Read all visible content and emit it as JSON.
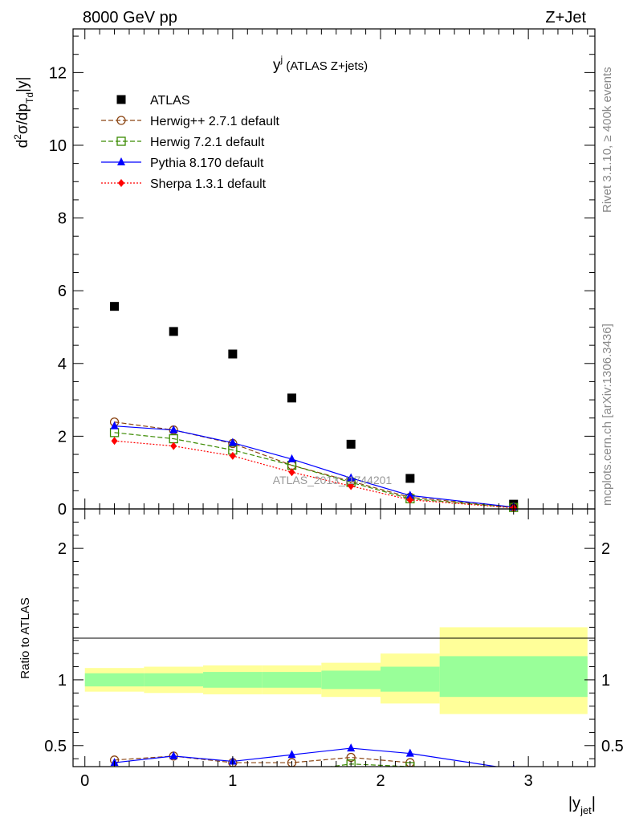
{
  "header": {
    "left": "8000 GeV pp",
    "right": "Z+Jet"
  },
  "side_labels": {
    "rivet": "Rivet 3.1.10, ≥ 400k events",
    "mcplots": "mcplots.cern.ch [arXiv:1306.3436]"
  },
  "watermark": "ATLAS_2013_I1744201",
  "chart_data": [
    {
      "type": "scatter",
      "title_main": "y",
      "title_sup": "j",
      "title_rest": " (ATLAS Z+jets)",
      "ylabel": "d²σ/dp_Td|y|",
      "ylabel_parts": {
        "a": "d",
        "sup": "2",
        "b": "σ/dp",
        "sub": "Td",
        "c": "|y|"
      },
      "xlim": [
        -0.08,
        3.45
      ],
      "ylim": [
        0,
        13.2
      ],
      "yticks": [
        0,
        2,
        4,
        6,
        8,
        10,
        12
      ],
      "ytick_labels": [
        "0",
        "2",
        "4",
        "6",
        "8",
        "10",
        "12"
      ],
      "x": [
        0.2,
        0.6,
        1.0,
        1.4,
        1.8,
        2.2,
        2.9
      ],
      "series": [
        {
          "name": "ATLAS",
          "marker": "square",
          "color": "#000000",
          "line": "none",
          "values": [
            5.57,
            4.88,
            4.26,
            3.05,
            1.78,
            0.84,
            0.13
          ]
        },
        {
          "name": "Herwig++ 2.7.1 default",
          "marker": "circle-open",
          "color": "#8b4513",
          "line": "dashed",
          "values": [
            2.39,
            2.17,
            1.8,
            1.2,
            0.76,
            0.32,
            0.05
          ]
        },
        {
          "name": "Herwig 7.2.1 default",
          "marker": "square-open",
          "color": "#3a8a00",
          "line": "dashed",
          "values": [
            2.1,
            1.93,
            1.62,
            1.2,
            0.73,
            0.28,
            0.04
          ]
        },
        {
          "name": "Pythia 8.170 default",
          "marker": "triangle",
          "color": "#0000ff",
          "line": "solid",
          "values": [
            2.28,
            2.17,
            1.82,
            1.37,
            0.85,
            0.37,
            0.05
          ]
        },
        {
          "name": "Sherpa 1.3.1 default",
          "marker": "diamond",
          "color": "#ff0000",
          "line": "dotted",
          "values": [
            1.87,
            1.73,
            1.46,
            1.01,
            0.63,
            0.25,
            0.03
          ]
        }
      ]
    },
    {
      "type": "line",
      "ylabel": "Ratio to ATLAS",
      "xlabel_main": "|y",
      "xlabel_sub": "jet",
      "xlabel_end": "|",
      "xlim": [
        -0.08,
        3.45
      ],
      "ylim": [
        0.34,
        2.3
      ],
      "xticks": [
        0,
        1,
        2,
        3
      ],
      "xtick_labels": [
        "0",
        "1",
        "2",
        "3"
      ],
      "yticks": [
        0.5,
        1,
        2
      ],
      "ytick_labels": [
        "0.5",
        "1",
        "2"
      ],
      "bands": [
        {
          "x0": 0.0,
          "x1": 0.4,
          "stat": [
            0.95,
            1.05
          ],
          "tot": [
            0.91,
            1.09
          ]
        },
        {
          "x0": 0.4,
          "x1": 0.8,
          "stat": [
            0.95,
            1.05
          ],
          "tot": [
            0.9,
            1.1
          ]
        },
        {
          "x0": 0.8,
          "x1": 1.2,
          "stat": [
            0.94,
            1.06
          ],
          "tot": [
            0.89,
            1.11
          ]
        },
        {
          "x0": 1.2,
          "x1": 1.6,
          "stat": [
            0.94,
            1.06
          ],
          "tot": [
            0.89,
            1.11
          ]
        },
        {
          "x0": 1.6,
          "x1": 2.0,
          "stat": [
            0.93,
            1.07
          ],
          "tot": [
            0.87,
            1.13
          ]
        },
        {
          "x0": 2.0,
          "x1": 2.4,
          "stat": [
            0.91,
            1.1
          ],
          "tot": [
            0.82,
            1.2
          ]
        },
        {
          "x0": 2.4,
          "x1": 3.4,
          "stat": [
            0.87,
            1.18
          ],
          "tot": [
            0.74,
            1.4
          ]
        }
      ],
      "series": [
        {
          "name": "Herwig++ 2.7.1 default",
          "marker": "circle-open",
          "color": "#8b4513",
          "line": "dashed",
          "x": [
            0.2,
            0.6,
            1.0,
            1.4,
            1.8,
            2.2
          ],
          "values": [
            0.39,
            0.42,
            0.37,
            0.37,
            0.41,
            0.37
          ]
        },
        {
          "name": "Herwig 7.2.1 default",
          "marker": "square-open",
          "color": "#3a8a00",
          "line": "dashed",
          "x": [
            1.4,
            1.8,
            2.2
          ],
          "values": [
            0.3,
            0.36,
            0.34
          ]
        },
        {
          "name": "Pythia 8.170 default",
          "marker": "triangle",
          "color": "#0000ff",
          "line": "solid",
          "x": [
            0.2,
            0.6,
            1.0,
            1.4,
            1.8,
            2.2,
            2.9
          ],
          "values": [
            0.37,
            0.42,
            0.38,
            0.43,
            0.48,
            0.44,
            0.32
          ]
        }
      ]
    }
  ]
}
